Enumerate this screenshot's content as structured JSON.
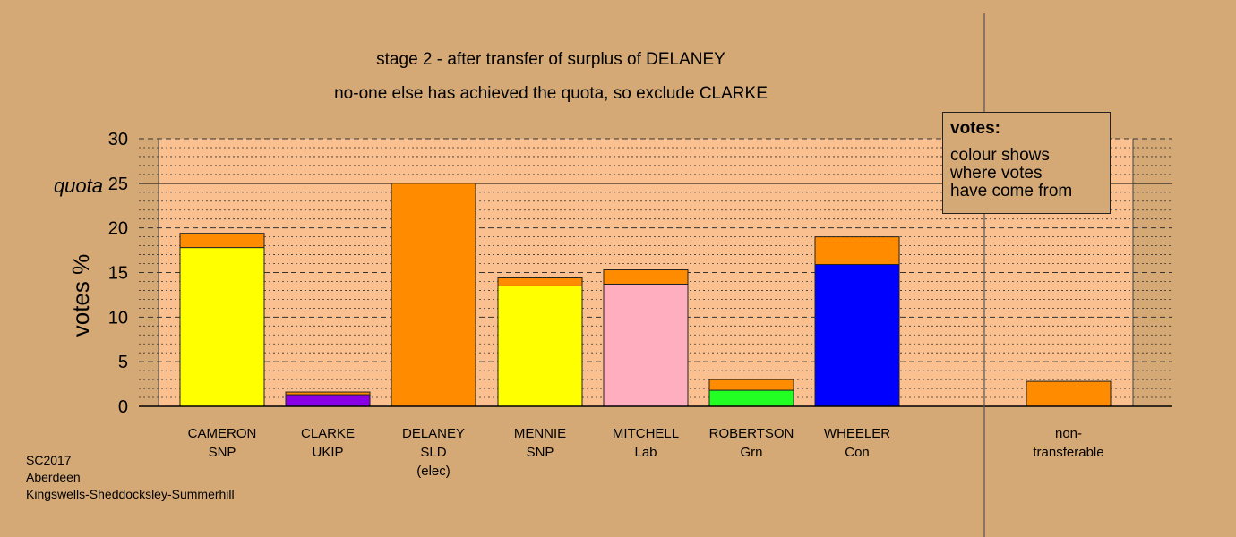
{
  "chart_data": {
    "type": "bar",
    "title": "stage 2 - after transfer of surplus of DELANEY",
    "subtitle": "no-one else has achieved the quota, so exclude CLARKE",
    "ylabel": "votes %",
    "xlabel": "",
    "ylim": [
      0,
      30
    ],
    "yticks": [
      0,
      5,
      10,
      15,
      20,
      25,
      30
    ],
    "quota": 25,
    "quota_label": "quota",
    "grid": true,
    "stacked": true,
    "categories": [
      [
        "CAMERON",
        "SNP"
      ],
      [
        "CLARKE",
        "UKIP"
      ],
      [
        "DELANEY",
        "SLD",
        "(elec)"
      ],
      [
        "MENNIE",
        "SNP"
      ],
      [
        "MITCHELL",
        "Lab"
      ],
      [
        "ROBERTSON",
        "Grn"
      ],
      [
        "WHEELER",
        "Con"
      ],
      [
        "non-",
        "transferable"
      ]
    ],
    "series": [
      {
        "color": "#ffff00",
        "values": [
          17.8,
          0,
          0,
          13.5,
          0,
          0,
          0,
          0
        ]
      },
      {
        "color": "#8a00e6",
        "values": [
          0,
          1.3,
          0,
          0,
          0,
          0,
          0,
          0
        ]
      },
      {
        "color": "#ffaec0",
        "values": [
          0,
          0,
          0,
          0,
          13.7,
          0,
          0,
          0
        ]
      },
      {
        "color": "#22ff22",
        "values": [
          0,
          0,
          0,
          0,
          0,
          1.8,
          0,
          0
        ]
      },
      {
        "color": "#0000ff",
        "values": [
          0,
          0,
          0,
          0,
          0,
          0,
          15.9,
          0
        ]
      },
      {
        "color": "#ff8c00",
        "values": [
          1.6,
          0.3,
          25.0,
          0.9,
          1.6,
          1.2,
          3.1,
          2.8
        ]
      }
    ],
    "legend": {
      "title": "votes:",
      "lines": [
        "colour shows",
        "where votes",
        "have come from"
      ],
      "placement": "top-right"
    }
  },
  "footer": {
    "lines": [
      "SC2017",
      "Aberdeen",
      "Kingswells-Sheddocksley-Summerhill"
    ]
  }
}
